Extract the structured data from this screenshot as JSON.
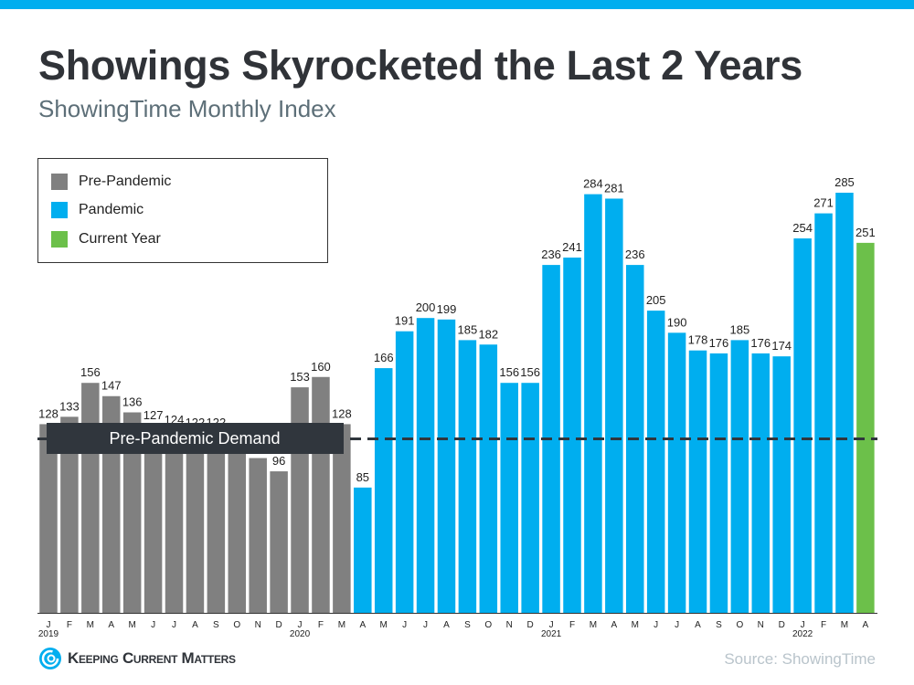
{
  "title": "Showings Skyrocketed the Last 2 Years",
  "subtitle": "ShowingTime Monthly Index",
  "source": "Source: ShowingTime",
  "logo_text": "Keeping Current Matters",
  "colors": {
    "top_bar": "#00aeef",
    "pre_pandemic": "#808080",
    "pandemic": "#00aeef",
    "current_year": "#6cc04a",
    "annotation_box": "#30363d"
  },
  "chart_data": {
    "type": "bar",
    "title": "",
    "xlabel": "",
    "ylabel": "",
    "ylim": [
      0,
      300
    ],
    "grid": false,
    "legend_position": "top-left",
    "legend": [
      {
        "name": "Pre-Pandemic",
        "color": "#808080"
      },
      {
        "name": "Pandemic",
        "color": "#00aeef"
      },
      {
        "name": "Current Year",
        "color": "#6cc04a"
      }
    ],
    "categories": [
      "J",
      "F",
      "M",
      "A",
      "M",
      "J",
      "J",
      "A",
      "S",
      "O",
      "N",
      "D",
      "J",
      "F",
      "M",
      "A",
      "M",
      "J",
      "J",
      "A",
      "S",
      "O",
      "N",
      "D",
      "J",
      "F",
      "M",
      "A",
      "M",
      "J",
      "J",
      "A",
      "S",
      "O",
      "N",
      "D",
      "J",
      "F",
      "M",
      "A"
    ],
    "year_labels": [
      {
        "index": 0,
        "label": "2019"
      },
      {
        "index": 12,
        "label": "2020"
      },
      {
        "index": 24,
        "label": "2021"
      },
      {
        "index": 36,
        "label": "2022"
      }
    ],
    "values": [
      128,
      133,
      156,
      147,
      136,
      127,
      124,
      122,
      122,
      112,
      105,
      96,
      153,
      160,
      128,
      85,
      166,
      191,
      200,
      199,
      185,
      182,
      156,
      156,
      236,
      241,
      284,
      281,
      236,
      205,
      190,
      178,
      176,
      185,
      176,
      174,
      254,
      271,
      285,
      251
    ],
    "data_labels": [
      "128",
      "133",
      "156",
      "147",
      "136",
      "127",
      "124",
      "122",
      "122",
      null,
      null,
      "96",
      "153",
      "160",
      "128",
      "85",
      "166",
      "191",
      "200",
      "199",
      "185",
      "182",
      "156",
      "156",
      "236",
      "241",
      "284",
      "281",
      "236",
      "205",
      "190",
      "178",
      "176",
      "185",
      "176",
      "174",
      "254",
      "271",
      "285",
      "251"
    ],
    "series_group": [
      "Pre-Pandemic",
      "Pre-Pandemic",
      "Pre-Pandemic",
      "Pre-Pandemic",
      "Pre-Pandemic",
      "Pre-Pandemic",
      "Pre-Pandemic",
      "Pre-Pandemic",
      "Pre-Pandemic",
      "Pre-Pandemic",
      "Pre-Pandemic",
      "Pre-Pandemic",
      "Pre-Pandemic",
      "Pre-Pandemic",
      "Pre-Pandemic",
      "Pandemic",
      "Pandemic",
      "Pandemic",
      "Pandemic",
      "Pandemic",
      "Pandemic",
      "Pandemic",
      "Pandemic",
      "Pandemic",
      "Pandemic",
      "Pandemic",
      "Pandemic",
      "Pandemic",
      "Pandemic",
      "Pandemic",
      "Pandemic",
      "Pandemic",
      "Pandemic",
      "Pandemic",
      "Pandemic",
      "Pandemic",
      "Pandemic",
      "Pandemic",
      "Pandemic",
      "Current Year"
    ],
    "reference_line": {
      "value": 118,
      "label": "Pre-Pandemic Demand",
      "style": "dashed"
    }
  }
}
